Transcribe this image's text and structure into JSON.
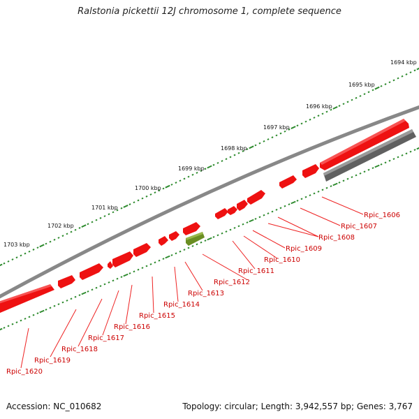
{
  "title": "Ralstonia pickettii 12J chromosome 1, complete sequence",
  "footer": {
    "accession": "Accession: NC_010682",
    "summary": "Topology: circular; Length: 3,942,557 bp; Genes: 3,767"
  },
  "colors": {
    "backbone": "#888888",
    "tick_major": "#2e7d2e",
    "tick_minor": "#2e9a2e",
    "gene": "#ee1111",
    "gene_highlight": "#6a8e22",
    "feature_gray": "#606060",
    "label": "#cc0000",
    "leader": "#ee2222"
  },
  "scale_labels": [
    "1694 kbp",
    "1695 kbp",
    "1696 kbp",
    "1697 kbp",
    "1698 kbp",
    "1699 kbp",
    "1700 kbp",
    "1701 kbp",
    "1702 kbp",
    "1703 kbp"
  ],
  "gene_labels": [
    "Rpic_1606",
    "Rpic_1607",
    "Rpic_1608",
    "Rpic_1609",
    "Rpic_1610",
    "Rpic_1611",
    "Rpic_1612",
    "Rpic_1613",
    "Rpic_1614",
    "Rpic_1615",
    "Rpic_1616",
    "Rpic_1617",
    "Rpic_1618",
    "Rpic_1619",
    "Rpic_1620"
  ]
}
